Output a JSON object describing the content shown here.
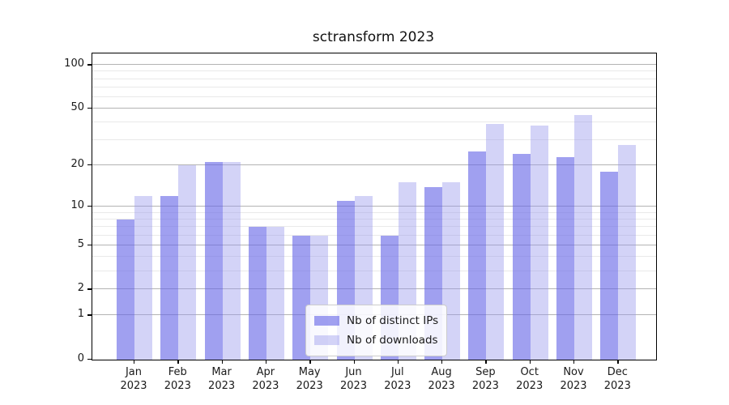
{
  "chart_data": {
    "type": "bar",
    "title": "sctransform 2023",
    "year_label": "2023",
    "categories": [
      "Jan",
      "Feb",
      "Mar",
      "Apr",
      "May",
      "Jun",
      "Jul",
      "Aug",
      "Sep",
      "Oct",
      "Nov",
      "Dec"
    ],
    "series": [
      {
        "name": "Nb of distinct IPs",
        "color": "rgba(102,102,230,0.62)",
        "values": [
          8,
          12,
          21,
          7,
          6,
          11,
          6,
          14,
          25,
          24,
          23,
          18
        ]
      },
      {
        "name": "Nb of downloads",
        "color": "rgba(150,150,235,0.42)",
        "values": [
          12,
          20,
          21,
          7,
          6,
          12,
          15,
          15,
          39,
          38,
          45,
          28
        ]
      }
    ],
    "scale": "log1p",
    "y_ticks": [
      100,
      50,
      20,
      10,
      5,
      2,
      1,
      0
    ],
    "y_minor_gridlines": [
      3,
      4,
      6,
      7,
      8,
      9,
      30,
      40,
      60,
      70,
      80,
      90
    ],
    "y_max": 120,
    "xlabel": "",
    "ylabel": "",
    "grid": true,
    "legend_position": "bottom-center",
    "colors": {
      "axis": "#000000",
      "major_grid": "#b3b3b3",
      "minor_grid": "#e9e9e9"
    }
  }
}
